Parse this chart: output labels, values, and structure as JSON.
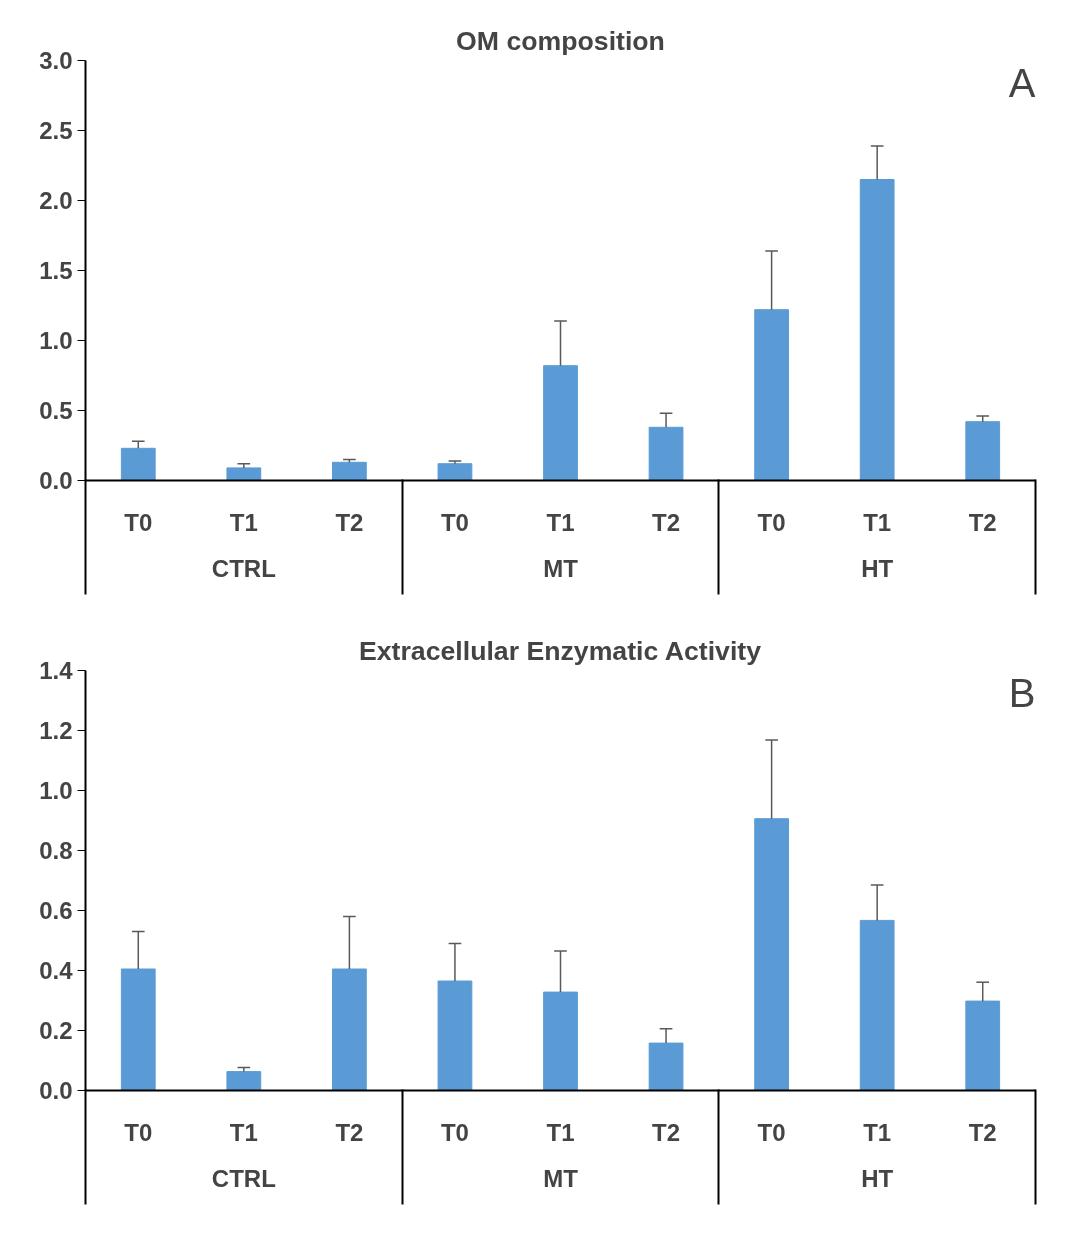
{
  "chart_data": [
    {
      "type": "bar",
      "title": "OM composition",
      "categories": [
        "T0",
        "T1",
        "T2",
        "T0",
        "T1",
        "T2",
        "T0",
        "T1",
        "T2"
      ],
      "series": [
        {
          "color": "#5b9bd5",
          "values": [
            0.23,
            0.09,
            0.13,
            0.12,
            0.82,
            0.38,
            1.22,
            2.15,
            0.42
          ],
          "errors": [
            [
              0.23,
              0.28
            ],
            [
              0.09,
              0.12
            ],
            [
              0.13,
              0.15
            ],
            [
              0.12,
              0.14
            ],
            [
              0.82,
              1.14
            ],
            [
              0.38,
              0.48
            ],
            [
              1.22,
              1.64
            ],
            [
              2.15,
              2.39
            ],
            [
              0.42,
              0.46
            ]
          ]
        }
      ],
      "ylim": [
        0,
        3.0
      ],
      "yticks": [
        {
          "value": 0,
          "label": "0.0"
        },
        {
          "value": 0.5,
          "label": "0.5"
        },
        {
          "value": 1,
          "label": "1.0"
        },
        {
          "value": 1.5,
          "label": "1.5"
        },
        {
          "value": 2,
          "label": "2.0"
        },
        {
          "value": 2.5,
          "label": "2.5"
        },
        {
          "value": 3,
          "label": "3.0"
        }
      ],
      "grid": false,
      "annotations": [
        "CTRL",
        "MT",
        "HT",
        "A"
      ]
    },
    {
      "type": "bar",
      "title": "Extracellular Enzymatic Activity",
      "categories": [
        "T0",
        "T1",
        "T2",
        "T0",
        "T1",
        "T2",
        "T0",
        "T1",
        "T2"
      ],
      "series": [
        {
          "color": "#5b9bd5",
          "values": [
            0.405,
            0.063,
            0.405,
            0.365,
            0.328,
            0.158,
            0.906,
            0.567,
            0.298
          ],
          "errors": [
            [
              0.405,
              0.53
            ],
            [
              0.063,
              0.077
            ],
            [
              0.405,
              0.58
            ],
            [
              0.365,
              0.49
            ],
            [
              0.328,
              0.465
            ],
            [
              0.158,
              0.206
            ],
            [
              0.906,
              1.168
            ],
            [
              0.567,
              0.685
            ],
            [
              0.298,
              0.361
            ]
          ]
        }
      ],
      "ylim": [
        0,
        1.4
      ],
      "yticks": [
        {
          "value": 0,
          "label": "0.0"
        },
        {
          "value": 0.2,
          "label": "0.2"
        },
        {
          "value": 0.4,
          "label": "0.4"
        },
        {
          "value": 0.6,
          "label": "0.6"
        },
        {
          "value": 0.8,
          "label": "0.8"
        },
        {
          "value": 1.0,
          "label": "1.0"
        },
        {
          "value": 1.2,
          "label": "1.2"
        },
        {
          "value": 1.4,
          "label": "1.4"
        }
      ],
      "grid": false,
      "annotations": [
        "CTRL",
        "MT",
        "HT",
        "B"
      ]
    }
  ]
}
